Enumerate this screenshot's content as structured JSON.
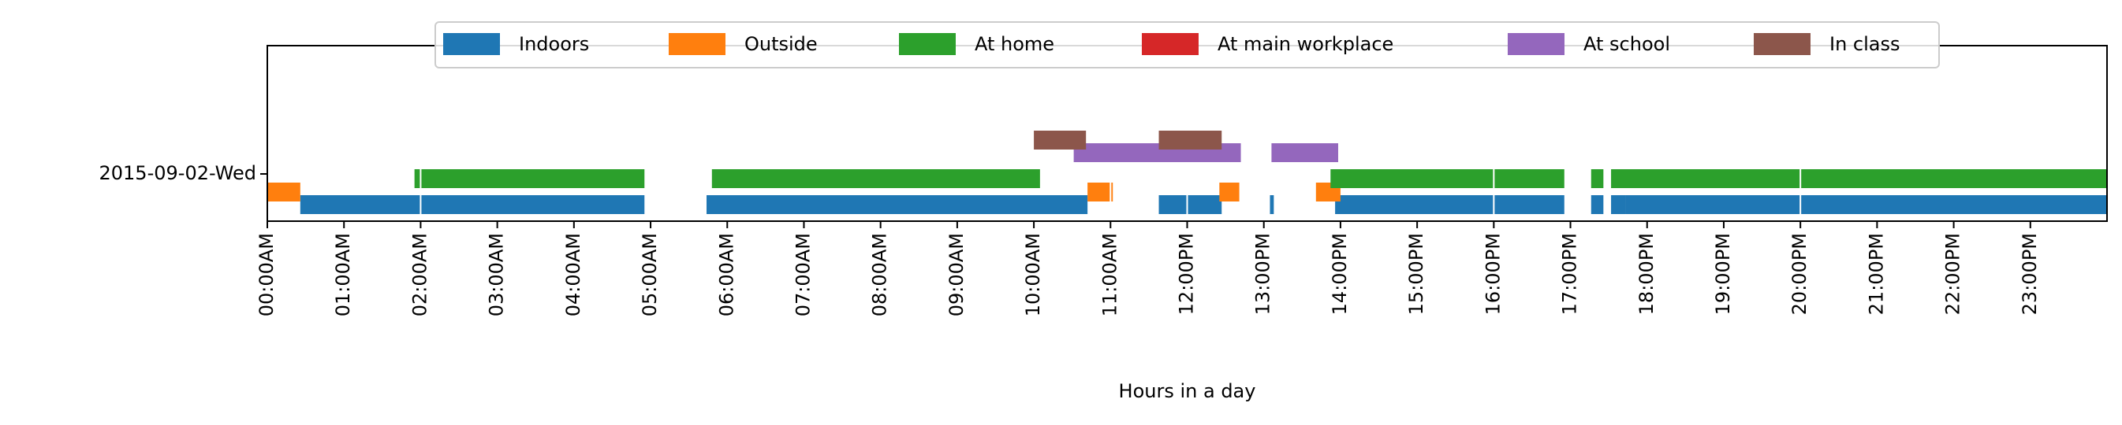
{
  "chart_data": {
    "type": "timeline",
    "title": "",
    "xlabel": "Hours in a day",
    "ylabel": "",
    "xlim": [
      0,
      24
    ],
    "row_label": "2015-09-02-Wed",
    "x_ticks": [
      "00:00AM",
      "01:00AM",
      "02:00AM",
      "03:00AM",
      "04:00AM",
      "05:00AM",
      "06:00AM",
      "07:00AM",
      "08:00AM",
      "09:00AM",
      "10:00AM",
      "11:00AM",
      "12:00PM",
      "13:00PM",
      "14:00PM",
      "15:00PM",
      "16:00PM",
      "17:00PM",
      "18:00PM",
      "19:00PM",
      "20:00PM",
      "21:00PM",
      "22:00PM",
      "23:00PM"
    ],
    "legend_position": "top-center",
    "series": [
      {
        "name": "Indoors",
        "color": "#1f77b4",
        "intervals": [
          [
            0.43,
            4.92
          ],
          [
            5.73,
            10.7
          ],
          [
            11.63,
            12.45
          ],
          [
            13.08,
            13.13
          ],
          [
            13.93,
            16.92
          ],
          [
            17.27,
            17.43
          ],
          [
            17.53,
            17.72
          ],
          [
            17.72,
            24.0
          ]
        ]
      },
      {
        "name": "Outside",
        "color": "#ff7f0e",
        "intervals": [
          [
            0.0,
            0.43
          ],
          [
            10.7,
            11.03
          ],
          [
            12.42,
            12.68
          ],
          [
            13.68,
            14.0
          ]
        ]
      },
      {
        "name": "At home",
        "color": "#2ca02c",
        "intervals": [
          [
            1.92,
            4.92
          ],
          [
            5.8,
            10.08
          ],
          [
            13.87,
            16.92
          ],
          [
            17.27,
            17.43
          ],
          [
            17.53,
            24.0
          ]
        ]
      },
      {
        "name": "At main workplace",
        "color": "#d62728",
        "intervals": []
      },
      {
        "name": "At school",
        "color": "#9467bd",
        "intervals": [
          [
            10.52,
            12.7
          ],
          [
            13.1,
            13.97
          ]
        ]
      },
      {
        "name": "In class",
        "color": "#8c564b",
        "intervals": [
          [
            10.0,
            10.68
          ],
          [
            11.63,
            12.45
          ]
        ]
      }
    ]
  }
}
